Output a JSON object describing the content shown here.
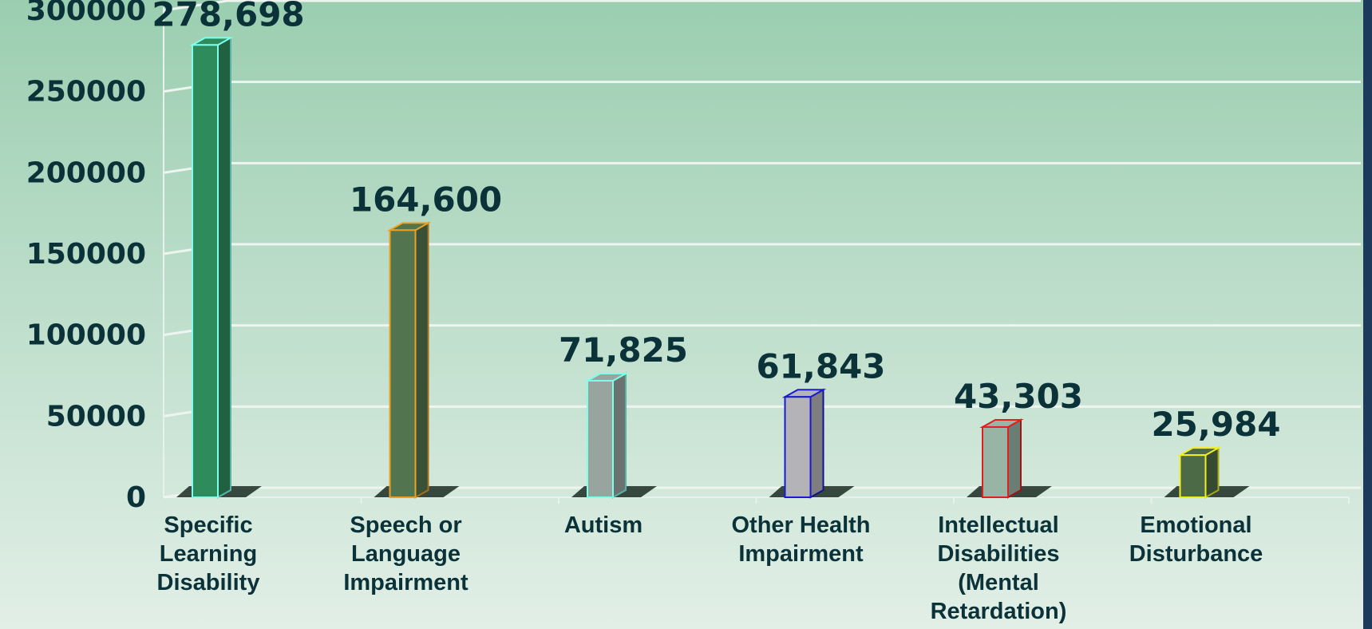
{
  "chart_data": {
    "type": "bar3d",
    "categories": [
      "Specific Learning Disability",
      "Speech or Language Impairment",
      "Autism",
      "Other Health Impairment",
      "Intellectual Disabilities (Mental Retardation)",
      "Emotional Disturbance"
    ],
    "values": [
      278698,
      164600,
      71825,
      61843,
      43303,
      25984
    ],
    "value_labels": [
      "278,698",
      "164,600",
      "71,825",
      "61,843",
      "43,303",
      "25,984"
    ],
    "colors": [
      "#2e8b5c",
      "#52744e",
      "#98a49e",
      "#b4b4b8",
      "#98b4a4",
      "#4c6a46"
    ],
    "edge_colors": [
      "#7fffee",
      "#f0a020",
      "#7fffee",
      "#1a1ad0",
      "#e02020",
      "#f0f020"
    ],
    "ylim": [
      0,
      300000
    ],
    "yticks": [
      0,
      50000,
      100000,
      150000,
      200000,
      250000,
      300000
    ],
    "grid": true
  }
}
